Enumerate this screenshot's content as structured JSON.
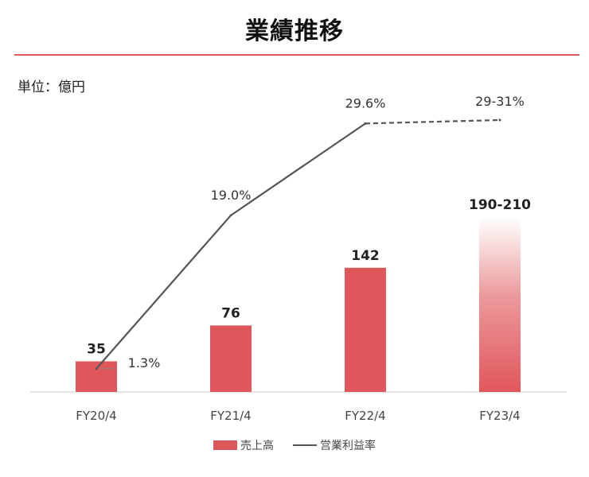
{
  "title": "業績推移",
  "unit_label": "単位：億円",
  "colors": {
    "accent": "#e0575b",
    "line": "#555555",
    "rule": "#e0575b"
  },
  "legend": {
    "bar_label": "売上高",
    "line_label": "営業利益率"
  },
  "chart_data": {
    "type": "bar",
    "categories": [
      "FY20/4",
      "FY21/4",
      "FY22/4",
      "FY23/4"
    ],
    "series": [
      {
        "name": "売上高",
        "type": "bar",
        "values": [
          35,
          76,
          142,
          200
        ],
        "value_labels": [
          "35",
          "76",
          "142",
          "190-210"
        ],
        "range": {
          "FY23/4": [
            190,
            210
          ]
        },
        "forecast": [
          false,
          false,
          false,
          true
        ]
      },
      {
        "name": "営業利益率",
        "type": "line",
        "values": [
          1.3,
          19.0,
          29.6,
          30.0
        ],
        "value_labels": [
          "1.3%",
          "19.0%",
          "29.6%",
          "29-31%"
        ],
        "range": {
          "FY23/4": [
            29,
            31
          ]
        },
        "forecast": [
          false,
          false,
          false,
          true
        ]
      }
    ],
    "ylim_left": [
      0,
      200
    ],
    "ylim_right": [
      0,
      30
    ],
    "grid": false,
    "legend_position": "bottom"
  }
}
